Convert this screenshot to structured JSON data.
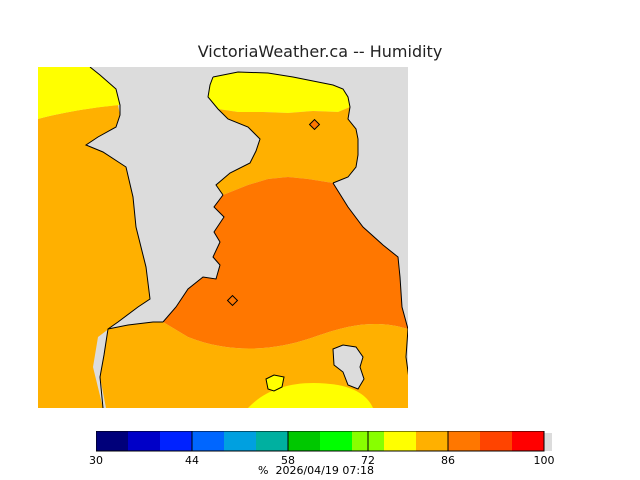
{
  "header": {
    "title": "VictoriaWeather.ca -- Humidity"
  },
  "map": {
    "land_color": "#dcdcdc",
    "coast_color": "#000000",
    "humidity_fields": [
      {
        "level": "80-86",
        "color": "#ffb000"
      },
      {
        "level": "77-80",
        "color": "#ffff00"
      },
      {
        "level": "86-90",
        "color": "#ff7700"
      }
    ],
    "stations": [
      {
        "name": "station-north",
        "color": "#ff7700"
      },
      {
        "name": "station-victoria",
        "color": "#ff7700"
      }
    ]
  },
  "legend": {
    "colors": [
      "#00007a",
      "#0000c8",
      "#0022ff",
      "#0066ff",
      "#00a0e0",
      "#00b0a0",
      "#00c800",
      "#00ff00",
      "#88ff00",
      "#ffff00",
      "#ffb000",
      "#ff7700",
      "#ff4400",
      "#ff0000"
    ],
    "tick_labels": [
      {
        "value": "30",
        "pos": 0
      },
      {
        "value": "44",
        "pos": 3
      },
      {
        "value": "58",
        "pos": 6
      },
      {
        "value": "72",
        "pos": 8.5
      },
      {
        "value": "86",
        "pos": 11
      },
      {
        "value": "100",
        "pos": 14
      }
    ],
    "unit": "%",
    "timestamp": "2026/04/19 07:18"
  }
}
